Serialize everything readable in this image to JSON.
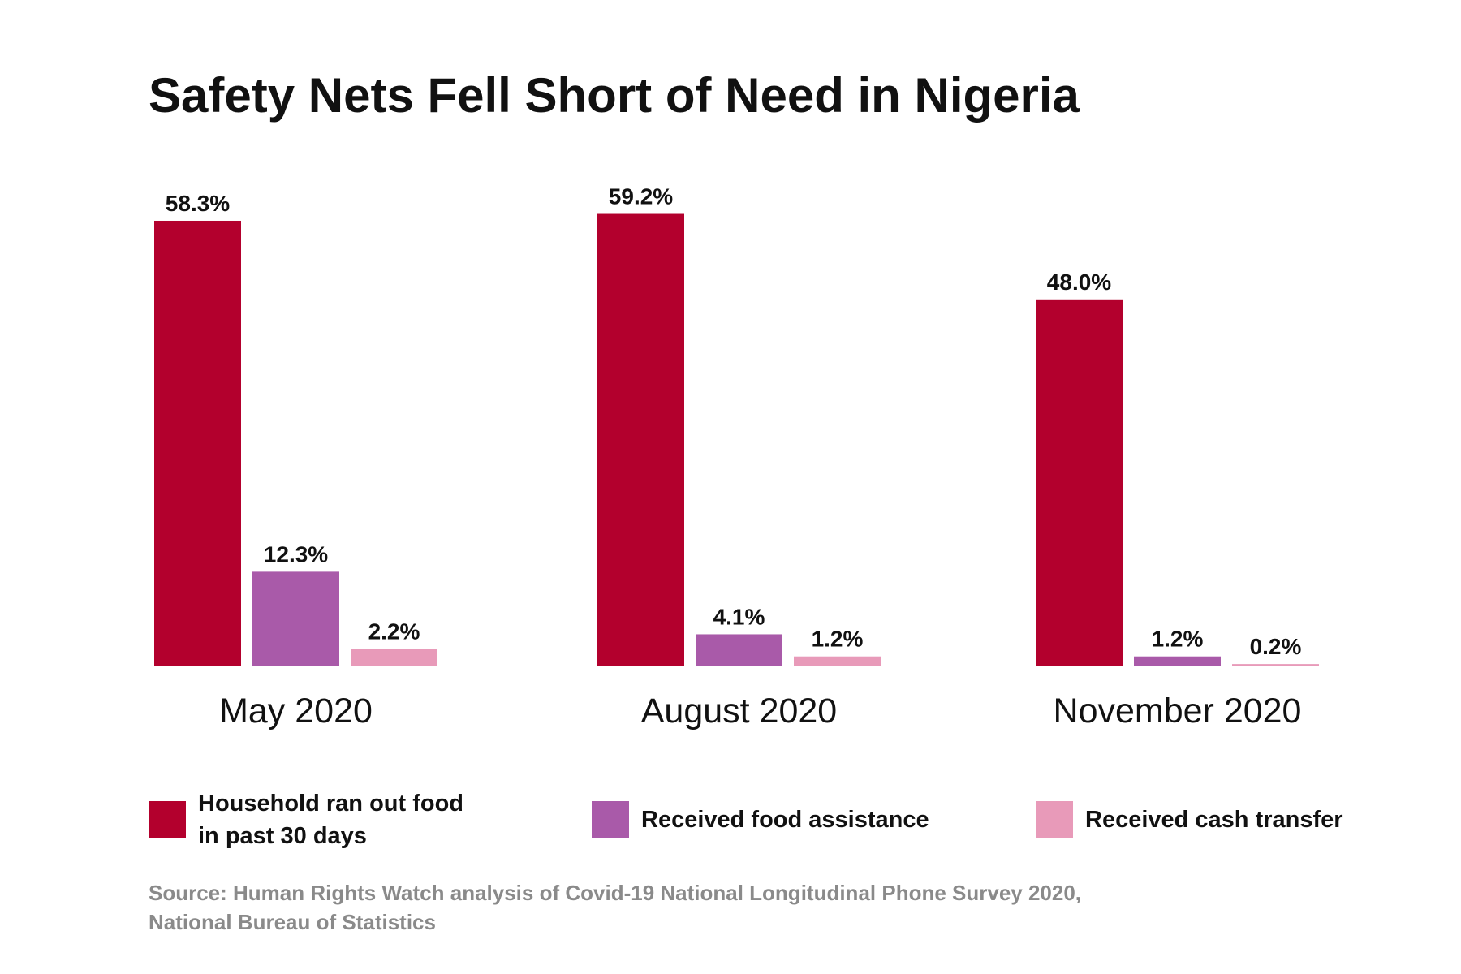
{
  "chart_data": {
    "type": "bar",
    "title": "Safety Nets Fell Short of Need in Nigeria",
    "categories": [
      "May 2020",
      "August 2020",
      "November 2020"
    ],
    "series": [
      {
        "name": "Household ran out food in past 30 days",
        "color": "#b3002d",
        "values": [
          58.3,
          59.2,
          48.0
        ],
        "value_labels": [
          "58.3%",
          "59.2%",
          "48.0%"
        ]
      },
      {
        "name": "Received food assistance",
        "color": "#a95aa9",
        "values": [
          12.3,
          4.1,
          1.2
        ],
        "value_labels": [
          "12.3%",
          "4.1%",
          "1.2%"
        ]
      },
      {
        "name": "Received cash transfer",
        "color": "#e89ab9",
        "values": [
          2.2,
          1.2,
          0.2
        ],
        "value_labels": [
          "2.2%",
          "1.2%",
          "0.2%"
        ]
      }
    ],
    "source": "Source: Human Rights Watch analysis of Covid-19 National Longitudinal Phone Survey 2020, National Bureau of Statistics"
  }
}
